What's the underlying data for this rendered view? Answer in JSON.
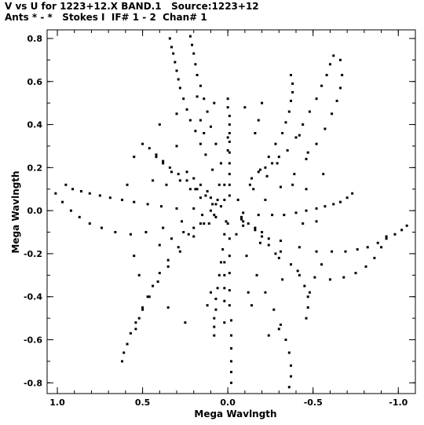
{
  "chart_data": {
    "type": "scatter",
    "title_line1": "V vs U for 1223+12.X BAND.1   Source:1223+12",
    "title_line2": "Ants * - *   Stokes I  IF# 1 - 2  Chan# 1",
    "xlabel": "Mega Wavlngth",
    "ylabel": "Mega Wavlngth",
    "xlim": [
      1.06,
      -1.1
    ],
    "ylim": [
      -0.85,
      0.84
    ],
    "x_reversed": true,
    "x_ticks": [
      1.0,
      0.5,
      0.0,
      -0.5,
      -1.0
    ],
    "x_tick_labels": [
      "1.0",
      "0.5",
      "0.0",
      "-0.5",
      "-1.0"
    ],
    "y_ticks": [
      0.8,
      0.6,
      0.4,
      0.2,
      0.0,
      -0.2,
      -0.4,
      -0.6,
      -0.8
    ],
    "y_tick_labels": [
      "0.8",
      "0.6",
      "0.4",
      "0.2",
      "0.0",
      "-0.2",
      "-0.4",
      "-0.6",
      "-0.8"
    ],
    "grid": false,
    "marker_color": "#000000",
    "series": [
      {
        "points": [
          [
            0.34,
            0.8
          ],
          [
            0.33,
            0.76
          ],
          [
            0.32,
            0.73
          ],
          [
            0.31,
            0.69
          ],
          [
            0.3,
            0.65
          ],
          [
            0.29,
            0.61
          ],
          [
            0.28,
            0.57
          ],
          [
            0.26,
            0.52
          ],
          [
            0.24,
            0.47
          ],
          [
            0.22,
            0.42
          ],
          [
            0.19,
            0.37
          ],
          [
            0.16,
            0.31
          ],
          [
            0.13,
            0.26
          ],
          [
            0.09,
            0.19
          ],
          [
            0.05,
            0.12
          ],
          [
            0.02,
            0.05
          ],
          [
            0.22,
            0.81
          ],
          [
            0.21,
            0.77
          ],
          [
            0.2,
            0.73
          ],
          [
            0.19,
            0.68
          ],
          [
            0.18,
            0.63
          ],
          [
            0.16,
            0.58
          ],
          [
            0.14,
            0.52
          ],
          [
            0.12,
            0.46
          ],
          [
            0.1,
            0.39
          ],
          [
            0.07,
            0.31
          ],
          [
            0.04,
            0.22
          ],
          [
            0.02,
            0.12
          ],
          [
            0.0,
            0.52
          ],
          [
            0.0,
            0.48
          ],
          [
            -0.01,
            0.44
          ],
          [
            -0.01,
            0.4
          ],
          [
            -0.01,
            0.36
          ],
          [
            -0.01,
            0.32
          ],
          [
            -0.01,
            0.27
          ],
          [
            -0.01,
            0.22
          ],
          [
            -0.01,
            0.17
          ],
          [
            -0.01,
            0.12
          ],
          [
            -0.01,
            0.07
          ],
          [
            -0.37,
            0.63
          ],
          [
            -0.38,
            0.59
          ],
          [
            -0.38,
            0.55
          ],
          [
            -0.37,
            0.51
          ],
          [
            -0.36,
            0.46
          ],
          [
            -0.34,
            0.41
          ],
          [
            -0.32,
            0.36
          ],
          [
            -0.28,
            0.31
          ],
          [
            -0.24,
            0.25
          ],
          [
            -0.19,
            0.19
          ],
          [
            -0.13,
            0.12
          ],
          [
            -0.06,
            0.05
          ],
          [
            -0.62,
            0.72
          ],
          [
            -0.6,
            0.68
          ],
          [
            -0.58,
            0.63
          ],
          [
            -0.55,
            0.58
          ],
          [
            -0.52,
            0.52
          ],
          [
            -0.48,
            0.46
          ],
          [
            -0.44,
            0.4
          ],
          [
            -0.4,
            0.34
          ],
          [
            -0.35,
            0.28
          ],
          [
            -0.29,
            0.22
          ],
          [
            -0.23,
            0.16
          ],
          [
            -0.15,
            0.1
          ],
          [
            -0.66,
            0.7
          ],
          [
            -0.67,
            0.63
          ],
          [
            -0.66,
            0.57
          ],
          [
            -0.64,
            0.51
          ],
          [
            -0.61,
            0.45
          ],
          [
            -0.57,
            0.38
          ],
          [
            -0.52,
            0.31
          ],
          [
            -0.46,
            0.24
          ],
          [
            -0.39,
            0.17
          ],
          [
            -0.31,
            0.11
          ],
          [
            -0.22,
            0.05
          ],
          [
            -0.73,
            0.08
          ],
          [
            -0.7,
            0.06
          ],
          [
            -0.66,
            0.04
          ],
          [
            -0.62,
            0.03
          ],
          [
            -0.57,
            0.02
          ],
          [
            -0.52,
            0.01
          ],
          [
            -0.46,
            0.0
          ],
          [
            -0.4,
            -0.01
          ],
          [
            -0.33,
            -0.02
          ],
          [
            -0.26,
            -0.02
          ],
          [
            -0.18,
            -0.02
          ],
          [
            -0.09,
            -0.01
          ],
          [
            -1.05,
            -0.07
          ],
          [
            -1.02,
            -0.09
          ],
          [
            -0.98,
            -0.11
          ],
          [
            -0.93,
            -0.13
          ],
          [
            -0.88,
            -0.15
          ],
          [
            -0.82,
            -0.17
          ],
          [
            -0.76,
            -0.18
          ],
          [
            -0.69,
            -0.19
          ],
          [
            -0.61,
            -0.19
          ],
          [
            -0.52,
            -0.19
          ],
          [
            -0.42,
            -0.17
          ],
          [
            -0.31,
            -0.14
          ],
          [
            -0.2,
            -0.1
          ],
          [
            -0.09,
            -0.05
          ],
          [
            -0.93,
            -0.12
          ],
          [
            -0.9,
            -0.17
          ],
          [
            -0.86,
            -0.22
          ],
          [
            -0.81,
            -0.26
          ],
          [
            -0.75,
            -0.29
          ],
          [
            -0.68,
            -0.31
          ],
          [
            -0.6,
            -0.32
          ],
          [
            -0.51,
            -0.31
          ],
          [
            -0.41,
            -0.28
          ],
          [
            -0.3,
            -0.22
          ],
          [
            -0.19,
            -0.15
          ],
          [
            -0.09,
            -0.07
          ],
          [
            -0.46,
            -0.5
          ],
          [
            -0.47,
            -0.45
          ],
          [
            -0.47,
            -0.4
          ],
          [
            -0.45,
            -0.35
          ],
          [
            -0.42,
            -0.3
          ],
          [
            -0.37,
            -0.25
          ],
          [
            -0.31,
            -0.19
          ],
          [
            -0.24,
            -0.13
          ],
          [
            -0.16,
            -0.08
          ],
          [
            -0.08,
            -0.03
          ],
          [
            -0.36,
            -0.82
          ],
          [
            -0.37,
            -0.77
          ],
          [
            -0.37,
            -0.72
          ],
          [
            -0.36,
            -0.66
          ],
          [
            -0.34,
            -0.6
          ],
          [
            -0.31,
            -0.53
          ],
          [
            -0.27,
            -0.46
          ],
          [
            -0.22,
            -0.38
          ],
          [
            -0.17,
            -0.3
          ],
          [
            -0.11,
            -0.21
          ],
          [
            -0.05,
            -0.11
          ],
          [
            -0.02,
            -0.8
          ],
          [
            -0.02,
            -0.75
          ],
          [
            -0.02,
            -0.7
          ],
          [
            -0.02,
            -0.64
          ],
          [
            -0.02,
            -0.58
          ],
          [
            -0.02,
            -0.51
          ],
          [
            -0.01,
            -0.44
          ],
          [
            -0.01,
            -0.37
          ],
          [
            -0.01,
            -0.29
          ],
          [
            -0.01,
            -0.21
          ],
          [
            -0.01,
            -0.13
          ],
          [
            0.0,
            -0.06
          ],
          [
            0.08,
            -0.58
          ],
          [
            0.08,
            -0.54
          ],
          [
            0.08,
            -0.5
          ],
          [
            0.07,
            -0.46
          ],
          [
            0.07,
            -0.41
          ],
          [
            0.06,
            -0.36
          ],
          [
            0.05,
            -0.3
          ],
          [
            0.04,
            -0.24
          ],
          [
            0.03,
            -0.18
          ],
          [
            0.02,
            -0.11
          ],
          [
            0.01,
            -0.05
          ],
          [
            0.62,
            -0.7
          ],
          [
            0.61,
            -0.66
          ],
          [
            0.59,
            -0.62
          ],
          [
            0.57,
            -0.57
          ],
          [
            0.54,
            -0.52
          ],
          [
            0.5,
            -0.46
          ],
          [
            0.46,
            -0.4
          ],
          [
            0.41,
            -0.33
          ],
          [
            0.35,
            -0.26
          ],
          [
            0.28,
            -0.19
          ],
          [
            0.2,
            -0.12
          ],
          [
            0.11,
            -0.06
          ],
          [
            0.54,
            -0.55
          ],
          [
            0.52,
            -0.5
          ],
          [
            0.5,
            -0.45
          ],
          [
            0.47,
            -0.4
          ],
          [
            0.44,
            -0.35
          ],
          [
            0.4,
            -0.29
          ],
          [
            0.35,
            -0.23
          ],
          [
            0.29,
            -0.17
          ],
          [
            0.23,
            -0.11
          ],
          [
            0.16,
            -0.06
          ],
          [
            0.08,
            -0.02
          ],
          [
            0.95,
            0.12
          ],
          [
            0.91,
            0.1
          ],
          [
            0.86,
            0.09
          ],
          [
            0.81,
            0.08
          ],
          [
            0.75,
            0.07
          ],
          [
            0.69,
            0.06
          ],
          [
            0.62,
            0.05
          ],
          [
            0.55,
            0.04
          ],
          [
            0.47,
            0.03
          ],
          [
            0.39,
            0.02
          ],
          [
            0.3,
            0.01
          ],
          [
            0.2,
            0.01
          ],
          [
            0.1,
            0.0
          ],
          [
            1.01,
            0.08
          ],
          [
            0.97,
            0.04
          ],
          [
            0.92,
            0.0
          ],
          [
            0.87,
            -0.03
          ],
          [
            0.81,
            -0.06
          ],
          [
            0.74,
            -0.08
          ],
          [
            0.66,
            -0.1
          ],
          [
            0.57,
            -0.11
          ],
          [
            0.48,
            -0.1
          ],
          [
            0.38,
            -0.08
          ],
          [
            0.27,
            -0.05
          ],
          [
            0.15,
            -0.02
          ],
          [
            0.5,
            0.31
          ],
          [
            0.46,
            0.29
          ],
          [
            0.42,
            0.26
          ],
          [
            0.38,
            0.23
          ],
          [
            0.34,
            0.2
          ],
          [
            0.29,
            0.17
          ],
          [
            0.24,
            0.14
          ],
          [
            0.19,
            0.1
          ],
          [
            0.13,
            0.07
          ],
          [
            0.07,
            0.03
          ],
          [
            0.42,
            0.25
          ],
          [
            0.38,
            0.22
          ],
          [
            0.33,
            0.18
          ],
          [
            0.28,
            0.14
          ],
          [
            0.22,
            0.1
          ],
          [
            0.16,
            0.06
          ],
          [
            0.09,
            0.03
          ],
          [
            0.18,
            0.1
          ],
          [
            0.1,
            0.06
          ],
          [
            0.04,
            0.02
          ],
          [
            0.18,
            0.53
          ],
          [
            0.08,
            0.5
          ],
          [
            -0.1,
            0.48
          ],
          [
            -0.2,
            0.5
          ],
          [
            -0.42,
            0.35
          ],
          [
            -0.47,
            0.27
          ],
          [
            -0.56,
            0.17
          ],
          [
            -0.55,
            -0.25
          ],
          [
            -0.48,
            -0.38
          ],
          [
            -0.3,
            -0.55
          ],
          [
            -0.24,
            -0.58
          ],
          [
            0.02,
            -0.52
          ],
          [
            0.25,
            -0.52
          ],
          [
            0.35,
            -0.45
          ],
          [
            0.52,
            -0.3
          ],
          [
            0.55,
            -0.21
          ],
          [
            0.59,
            0.12
          ],
          [
            0.55,
            0.25
          ],
          [
            0.4,
            0.4
          ],
          [
            0.3,
            0.45
          ],
          [
            -0.28,
            -0.2
          ],
          [
            -0.24,
            -0.16
          ],
          [
            -0.2,
            -0.12
          ],
          [
            -0.16,
            -0.09
          ],
          [
            -0.12,
            -0.06
          ],
          [
            -0.08,
            -0.04
          ],
          [
            -0.14,
            0.15
          ],
          [
            -0.18,
            0.18
          ],
          [
            -0.22,
            0.2
          ],
          [
            -0.26,
            0.22
          ],
          [
            -0.3,
            0.25
          ],
          [
            0.24,
            0.18
          ],
          [
            0.2,
            0.15
          ],
          [
            0.16,
            0.12
          ],
          [
            0.12,
            0.09
          ],
          [
            0.06,
            0.05
          ],
          [
            0.26,
            -0.1
          ],
          [
            0.2,
            -0.08
          ],
          [
            0.14,
            -0.06
          ],
          [
            0.07,
            -0.03
          ],
          [
            0.02,
            -0.3
          ],
          [
            0.02,
            -0.24
          ],
          [
            0.02,
            -0.36
          ],
          [
            0.02,
            -0.42
          ],
          [
            0.0,
            0.28
          ],
          [
            0.0,
            0.34
          ],
          [
            0.4,
            -0.16
          ],
          [
            0.33,
            -0.13
          ],
          [
            -0.38,
            0.12
          ],
          [
            -0.46,
            0.1
          ],
          [
            -0.52,
            -0.05
          ],
          [
            -0.44,
            -0.06
          ],
          [
            0.44,
            0.14
          ],
          [
            0.36,
            0.12
          ],
          [
            -0.16,
            0.36
          ],
          [
            -0.18,
            0.42
          ],
          [
            0.1,
            -0.38
          ],
          [
            0.12,
            -0.44
          ],
          [
            -0.12,
            -0.38
          ],
          [
            -0.14,
            -0.44
          ],
          [
            0.14,
            0.36
          ],
          [
            0.16,
            0.42
          ],
          [
            0.3,
            0.3
          ],
          [
            -0.32,
            -0.32
          ]
        ]
      }
    ]
  }
}
